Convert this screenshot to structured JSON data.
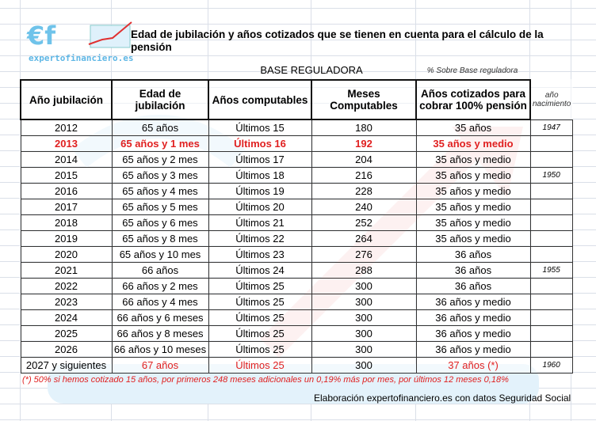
{
  "logo": {
    "text": "€f",
    "tagline": "expertofinanciero.es"
  },
  "title": "Edad de jubilación y años cotizados que se tienen en cuenta para el cálculo de la pensión",
  "group_base": "BASE REGULADORA",
  "group_pct": "% Sobre Base reguladora",
  "headers": [
    "Año jubilación",
    "Edad de jubilación",
    "Años computables",
    "Meses Computables",
    "Años cotizados para cobrar 100% pensión",
    "año nacimiento"
  ],
  "rows": [
    [
      "2012",
      "65 años",
      "Últimos 15",
      "180",
      "35 años",
      "1947"
    ],
    [
      "2013",
      "65 años y 1 mes",
      "Últimos 16",
      "192",
      "35 años y medio",
      ""
    ],
    [
      "2014",
      "65 años y 2 mes",
      "Últimos 17",
      "204",
      "35 años y medio",
      ""
    ],
    [
      "2015",
      "65 años y 3 mes",
      "Últimos 18",
      "216",
      "35 años y medio",
      "1950"
    ],
    [
      "2016",
      "65 años y 4 mes",
      "Últimos 19",
      "228",
      "35 años y medio",
      ""
    ],
    [
      "2017",
      "65 años y 5 mes",
      "Últimos 20",
      "240",
      "35 años y medio",
      ""
    ],
    [
      "2018",
      "65 años y 6 mes",
      "Últimos 21",
      "252",
      "35 años y medio",
      ""
    ],
    [
      "2019",
      "65 años y 8 mes",
      "Últimos 22",
      "264",
      "35 años y medio",
      ""
    ],
    [
      "2020",
      "65 años y 10 mes",
      "Últimos 23",
      "276",
      "36 años",
      ""
    ],
    [
      "2021",
      "66 años",
      "Últimos 24",
      "288",
      "36 años",
      "1955"
    ],
    [
      "2022",
      "66 años y 2 mes",
      "Últimos 25",
      "300",
      "36 años",
      ""
    ],
    [
      "2023",
      "66 años y 4 mes",
      "Últimos 25",
      "300",
      "36 años y medio",
      ""
    ],
    [
      "2024",
      "66 años y 6 meses",
      "Últimos 25",
      "300",
      "36 años y medio",
      ""
    ],
    [
      "2025",
      "66 años y 8 meses",
      "Últimos 25",
      "300",
      "36 años y medio",
      ""
    ],
    [
      "2026",
      "66 años y 10 meses",
      "Últimos 25",
      "300",
      "36 años y medio",
      ""
    ],
    [
      "2027 y siguientes",
      "67 años",
      "Últimos 25",
      "300",
      "37 años (*)",
      "1960"
    ]
  ],
  "highlight_color": "#e02020",
  "footnote": "(*) 50% si hemos cotizado 15 años, por primeros 248 meses adicionales un 0,19% más por mes, por últimos 12 meses 0,18%",
  "credit": "Elaboración expertofinanciero.es con datos Seguridad Social"
}
